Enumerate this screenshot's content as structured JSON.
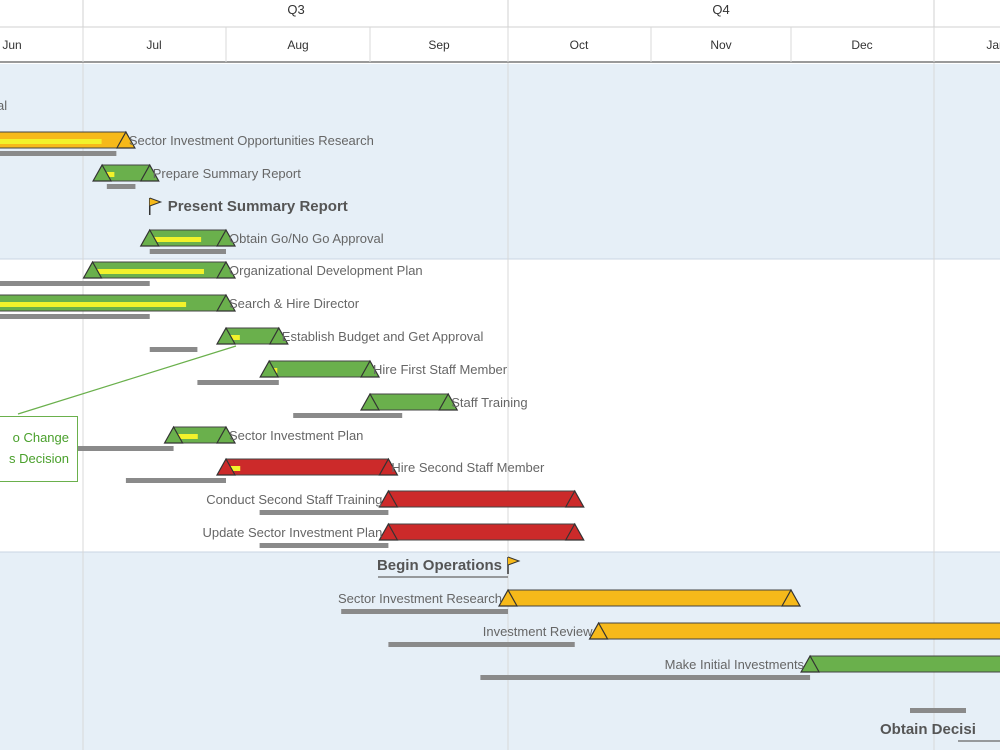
{
  "timeline": {
    "quarters": [
      "Q3",
      "Q4"
    ],
    "months": [
      "Jun",
      "Jul",
      "Aug",
      "Sep",
      "Oct",
      "Nov",
      "Dec",
      "Jan"
    ]
  },
  "callout": {
    "lines": [
      "o Change",
      "s Decision"
    ]
  },
  "colors": {
    "on_track": "#6ab04c",
    "at_risk": "#f6b91a",
    "late": "#cc2a2a",
    "progress": "#f2f22b",
    "baseline": "#8a8a8a",
    "band": "#e6eff7"
  },
  "chart_data": {
    "type": "gantt",
    "x_axis": "time (months)",
    "groups": [
      {
        "name": "",
        "tasks": [
          {
            "label": "al",
            "kind": "text"
          },
          {
            "label": "Sector Investment Opportunities Research",
            "kind": "bar",
            "status": "at_risk",
            "start": "May 15",
            "end": "Jul 10",
            "progress": 0.9,
            "baseline": [
              "May 15",
              "Jul 8"
            ]
          },
          {
            "label": "Prepare Summary Report",
            "kind": "bar",
            "status": "on_track",
            "start": "Jul 5",
            "end": "Jul 15",
            "progress": 0.3,
            "baseline": [
              "Jul 6",
              "Jul 12"
            ]
          },
          {
            "label": "Present Summary Report",
            "kind": "milestone",
            "date": "Jul 15"
          },
          {
            "label": "Obtain Go/No Go Approval",
            "kind": "bar",
            "status": "on_track",
            "start": "Jul 15",
            "end": "Aug 1",
            "progress": 0.7,
            "baseline": [
              "Jul 15",
              "Aug 1"
            ]
          }
        ]
      },
      {
        "name": "",
        "tasks": [
          {
            "label": "Organizational Development Plan",
            "kind": "bar",
            "status": "on_track",
            "start": "Jul 3",
            "end": "Aug 1",
            "progress": 0.85,
            "baseline": [
              "Jun 1",
              "Jul 15"
            ]
          },
          {
            "label": "Search & Hire Director",
            "kind": "bar",
            "status": "on_track",
            "start": "Jun 8",
            "end": "Aug 1",
            "progress": 0.85,
            "baseline": [
              "Jun 1",
              "Jul 15"
            ]
          },
          {
            "label": "Establish Budget and Get Approval",
            "kind": "bar",
            "status": "on_track",
            "start": "Aug 1",
            "end": "Aug 12",
            "progress": 0.3,
            "baseline": [
              "Jul 15",
              "Jul 25"
            ]
          },
          {
            "label": "Hire First Staff Member",
            "kind": "bar",
            "status": "on_track",
            "start": "Aug 10",
            "end": "Aug 31",
            "progress": 0.1,
            "baseline": [
              "Jul 25",
              "Aug 12"
            ]
          },
          {
            "label": "Staff Training",
            "kind": "bar",
            "status": "on_track",
            "start": "Aug 31",
            "end": "Sep 18",
            "progress": 0.0,
            "baseline": [
              "Aug 15",
              "Sep 8"
            ]
          },
          {
            "label": "Sector Investment Plan",
            "kind": "bar",
            "status": "on_track",
            "start": "Jul 20",
            "end": "Aug 1",
            "progress": 0.5,
            "baseline": [
              "Jun 1",
              "Jul 20"
            ]
          },
          {
            "label": "Hire Second Staff Member",
            "kind": "bar",
            "status": "late",
            "start": "Aug 1",
            "end": "Sep 5",
            "progress": 0.1,
            "baseline": [
              "Jul 10",
              "Aug 1"
            ]
          },
          {
            "label": "Conduct Second Staff Training",
            "kind": "bar",
            "status": "late",
            "start": "Sep 5",
            "end": "Oct 15",
            "progress": 0.0,
            "baseline": [
              "Aug 8",
              "Sep 5"
            ]
          },
          {
            "label": "Update Sector Investment Plan",
            "kind": "bar",
            "status": "late",
            "start": "Sep 5",
            "end": "Oct 15",
            "progress": 0.0,
            "baseline": [
              "Aug 8",
              "Sep 5"
            ]
          }
        ]
      },
      {
        "name": "",
        "tasks": [
          {
            "label": "Begin Operations",
            "kind": "milestone",
            "date": "Oct 1"
          },
          {
            "label": "Sector Investment Research",
            "kind": "bar",
            "status": "at_risk",
            "start": "Oct 1",
            "end": "Dec 1",
            "progress": 0.0,
            "baseline": [
              "Aug 25",
              "Oct 1"
            ]
          },
          {
            "label": "Investment Review",
            "kind": "bar",
            "status": "at_risk",
            "start": "Oct 20",
            "end": "Jan 31",
            "progress": 0.0,
            "baseline": [
              "Sep 5",
              "Oct 15"
            ]
          },
          {
            "label": "Make Initial Investments",
            "kind": "bar",
            "status": "on_track",
            "start": "Dec 5",
            "end": "Jan 31",
            "progress": 0.0,
            "baseline": [
              "Sep 25",
              "Dec 5"
            ]
          },
          {
            "label": "Obtain Decisi",
            "kind": "milestone",
            "date": "Jan 15"
          }
        ]
      }
    ]
  }
}
